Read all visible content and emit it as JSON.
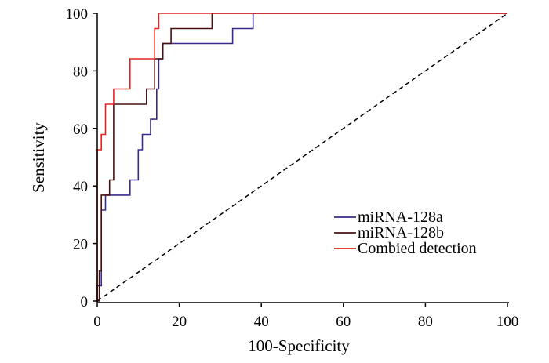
{
  "chart_data": {
    "type": "line",
    "title": "",
    "xlabel": "100-Specificity",
    "ylabel": "Sensitivity",
    "xlim": [
      0,
      100
    ],
    "ylim": [
      0,
      100
    ],
    "x_ticks": [
      0,
      20,
      40,
      60,
      80,
      100
    ],
    "y_ticks": [
      0,
      20,
      40,
      60,
      80,
      100
    ],
    "grid": false,
    "legend_position": "bottom-right",
    "reference_line": {
      "style": "dashed",
      "color": "#000000",
      "points": [
        [
          0,
          0
        ],
        [
          100,
          100
        ]
      ]
    },
    "series": [
      {
        "name": "miRNA-128a",
        "color": "#3a2a8c",
        "points": [
          [
            0,
            0
          ],
          [
            0,
            5.3
          ],
          [
            1,
            5.3
          ],
          [
            1,
            31.6
          ],
          [
            2,
            31.6
          ],
          [
            2,
            36.8
          ],
          [
            8,
            36.8
          ],
          [
            8,
            42.1
          ],
          [
            10,
            42.1
          ],
          [
            10,
            52.6
          ],
          [
            11,
            52.6
          ],
          [
            11,
            57.9
          ],
          [
            13,
            57.9
          ],
          [
            13,
            63.2
          ],
          [
            14.5,
            63.2
          ],
          [
            14.5,
            73.7
          ],
          [
            15,
            73.7
          ],
          [
            15,
            84.2
          ],
          [
            16,
            84.2
          ],
          [
            16,
            89.5
          ],
          [
            33,
            89.5
          ],
          [
            33,
            94.7
          ],
          [
            38,
            94.7
          ],
          [
            38,
            100
          ],
          [
            100,
            100
          ]
        ]
      },
      {
        "name": "miRNA-128b",
        "color": "#4a1010",
        "points": [
          [
            0,
            0
          ],
          [
            0.5,
            0
          ],
          [
            0.5,
            10.5
          ],
          [
            1,
            10.5
          ],
          [
            1,
            36.8
          ],
          [
            3,
            36.8
          ],
          [
            3,
            42.1
          ],
          [
            4,
            42.1
          ],
          [
            4,
            68.4
          ],
          [
            12,
            68.4
          ],
          [
            12,
            73.7
          ],
          [
            14,
            73.7
          ],
          [
            14,
            84.2
          ],
          [
            16,
            84.2
          ],
          [
            16,
            89.5
          ],
          [
            18,
            89.5
          ],
          [
            18,
            94.7
          ],
          [
            28,
            94.7
          ],
          [
            28,
            100
          ],
          [
            100,
            100
          ]
        ]
      },
      {
        "name": "Combied detection",
        "color": "#e8231e",
        "points": [
          [
            0,
            0
          ],
          [
            0,
            52.6
          ],
          [
            1,
            52.6
          ],
          [
            1,
            57.9
          ],
          [
            2,
            57.9
          ],
          [
            2,
            68.4
          ],
          [
            4,
            68.4
          ],
          [
            4,
            73.7
          ],
          [
            8,
            73.7
          ],
          [
            8,
            84.2
          ],
          [
            14,
            84.2
          ],
          [
            14,
            94.7
          ],
          [
            15,
            94.7
          ],
          [
            15,
            100
          ],
          [
            100,
            100
          ]
        ]
      }
    ]
  }
}
